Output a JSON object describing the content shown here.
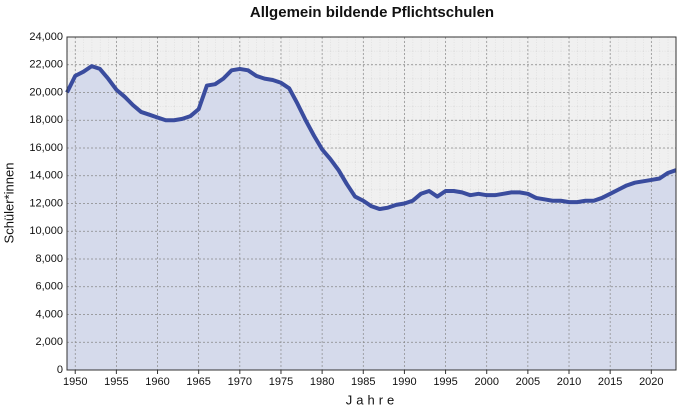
{
  "chart_data": {
    "type": "area",
    "title": "Allgemein bildende Pflichtschulen",
    "x_label": "Jahre",
    "y_label": "Schüler*innen",
    "x": [
      1949,
      1950,
      1951,
      1952,
      1953,
      1954,
      1955,
      1956,
      1957,
      1958,
      1959,
      1960,
      1961,
      1962,
      1963,
      1964,
      1965,
      1966,
      1967,
      1968,
      1969,
      1970,
      1971,
      1972,
      1973,
      1974,
      1975,
      1976,
      1977,
      1978,
      1979,
      1980,
      1981,
      1982,
      1983,
      1984,
      1985,
      1986,
      1987,
      1988,
      1989,
      1990,
      1991,
      1992,
      1993,
      1994,
      1995,
      1996,
      1997,
      1998,
      1999,
      2000,
      2001,
      2002,
      2003,
      2004,
      2005,
      2006,
      2007,
      2008,
      2009,
      2010,
      2011,
      2012,
      2013,
      2014,
      2015,
      2016,
      2017,
      2018,
      2019,
      2020,
      2021,
      2022,
      2023
    ],
    "values": [
      20000,
      21200,
      21500,
      21900,
      21700,
      21000,
      20200,
      19700,
      19100,
      18600,
      18400,
      18200,
      18000,
      18000,
      18100,
      18300,
      18800,
      20500,
      20600,
      21000,
      21600,
      21700,
      21600,
      21200,
      21000,
      20900,
      20700,
      20300,
      19200,
      18000,
      16900,
      15900,
      15200,
      14400,
      13400,
      12500,
      12200,
      11800,
      11600,
      11700,
      11900,
      12000,
      12200,
      12700,
      12900,
      12500,
      12900,
      12900,
      12800,
      12600,
      12700,
      12600,
      12600,
      12700,
      12800,
      12800,
      12700,
      12400,
      12300,
      12200,
      12200,
      12100,
      12100,
      12200,
      12200,
      12400,
      12700,
      13000,
      13300,
      13500,
      13600,
      13700,
      13800,
      14200,
      14400
    ],
    "color": "#3a4c9e",
    "fill_color": "#d5daeb",
    "xlim": [
      1949,
      2023
    ],
    "ylim": [
      0,
      24000
    ],
    "xticks": [
      1950,
      1955,
      1960,
      1965,
      1970,
      1975,
      1980,
      1985,
      1990,
      1995,
      2000,
      2005,
      2010,
      2015,
      2020
    ],
    "yticks": [
      0,
      {
        "value": 2000,
        "label": "2,000"
      },
      {
        "value": 4000,
        "label": "4,000"
      },
      {
        "value": 6000,
        "label": "6,000"
      },
      {
        "value": 8000,
        "label": "8,000"
      },
      {
        "value": 10000,
        "label": "10,000"
      },
      {
        "value": 12000,
        "label": "12,000"
      },
      {
        "value": 14000,
        "label": "14,000"
      },
      {
        "value": 16000,
        "label": "16,000"
      },
      {
        "value": 18000,
        "label": "18,000"
      },
      {
        "value": 20000,
        "label": "20,000"
      },
      {
        "value": 22000,
        "label": "22,000"
      },
      {
        "value": 24000,
        "label": "24,000"
      }
    ],
    "grid": true
  }
}
